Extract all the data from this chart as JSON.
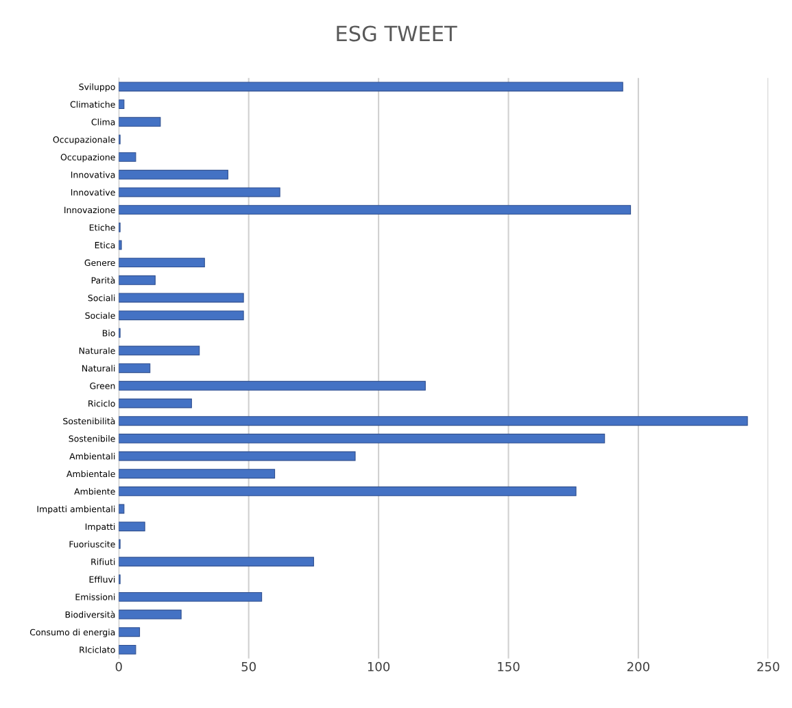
{
  "chart_data": {
    "type": "bar",
    "orientation": "horizontal",
    "title": "ESG TWEET",
    "categories": [
      "Sviluppo",
      "Climatiche",
      "Clima",
      "Occupazionale",
      "Occupazione",
      "Innovativa",
      "Innovative",
      "Innovazione",
      "Etiche",
      "Etica",
      "Genere",
      "Parità",
      "Sociali",
      "Sociale",
      "Bio",
      "Naturale",
      "Naturali",
      "Green",
      "Riciclo",
      "Sostenibilità",
      "Sostenibile",
      "Ambientali",
      "Ambientale",
      "Ambiente",
      "Impatti ambientali",
      "Impatti",
      "Fuoriuscite",
      "Rifiuti",
      "Effluvi",
      "Emissioni",
      "Biodiversità",
      "Consumo di energia",
      "RIciclato"
    ],
    "values": [
      194,
      2,
      16,
      0.5,
      6.5,
      42,
      62,
      197,
      0.5,
      1,
      33,
      14,
      48,
      48,
      0.5,
      31,
      12,
      118,
      28,
      242,
      187,
      91,
      60,
      176,
      2,
      10,
      0.5,
      75,
      0.5,
      55,
      24,
      8,
      6.5
    ],
    "color": "#4472c4",
    "xlim": [
      0,
      250
    ],
    "xticks": [
      0,
      50,
      100,
      150,
      200,
      250
    ],
    "grid": "x"
  }
}
